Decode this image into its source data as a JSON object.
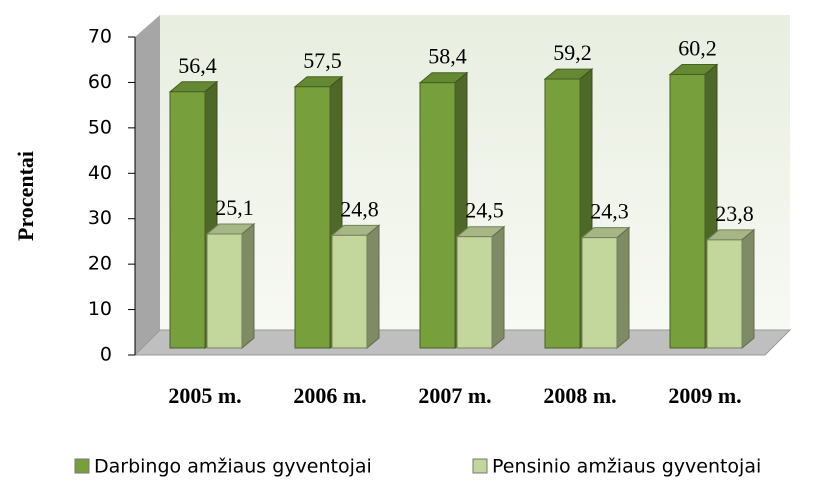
{
  "chart_data": {
    "type": "bar",
    "y_label": "Procentai",
    "categories": [
      "2005 m.",
      "2006 m.",
      "2007 m.",
      "2008 m.",
      "2009 m."
    ],
    "series": [
      {
        "name": "Darbingo amžiaus gyventojai",
        "color": "#77a03c",
        "values": [
          56.4,
          57.5,
          58.4,
          59.2,
          60.2
        ],
        "value_labels": [
          "56,4",
          "57,5",
          "58,4",
          "59,2",
          "60,2"
        ]
      },
      {
        "name": "Pensinio amžiaus gyventojai",
        "color": "#c3d69b",
        "values": [
          25.1,
          24.8,
          24.5,
          24.3,
          23.8
        ],
        "value_labels": [
          "25,1",
          "24,8",
          "24,5",
          "24,3",
          "23,8"
        ]
      }
    ],
    "ylim": [
      0,
      70
    ],
    "yticks": [
      0,
      10,
      20,
      30,
      40,
      50,
      60,
      70
    ],
    "legend": "bottom"
  }
}
